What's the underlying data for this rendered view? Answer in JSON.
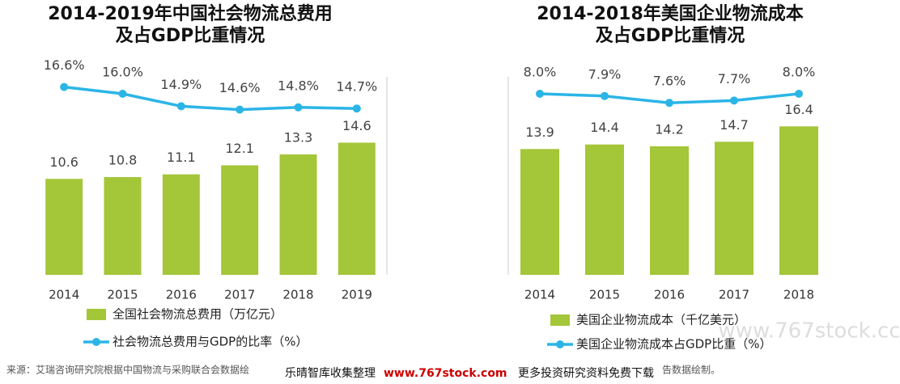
{
  "chart_data": [
    {
      "type": "bar_line",
      "title": [
        "2014-2019年中国社会物流总费用",
        "及占GDP比重情况"
      ],
      "categories": [
        "2014",
        "2015",
        "2016",
        "2017",
        "2018",
        "2019"
      ],
      "ylim": [
        0,
        25
      ],
      "y2lim": [
        0,
        20
      ],
      "series": [
        {
          "name": "全国社会物流总费用（万亿元）",
          "color": "#a4c639",
          "values": [
            10.6,
            10.8,
            11.1,
            12.1,
            13.3,
            14.6
          ]
        },
        {
          "name": "社会物流总费用与GDP的比率（%）",
          "color": "#2bb5e6",
          "axis": "y2",
          "values": [
            16.6,
            16.0,
            14.9,
            14.6,
            14.8,
            14.7
          ],
          "value_labels": [
            "16.6%",
            "16.0%",
            "14.9%",
            "14.6%",
            "14.8%",
            "14.7%"
          ]
        }
      ]
    },
    {
      "type": "bar_line",
      "title": [
        "2014-2018年美国企业物流成本",
        "及占GDP比重情况"
      ],
      "categories": [
        "2014",
        "2015",
        "2016",
        "2017",
        "2018"
      ],
      "ylim": [
        0,
        25
      ],
      "y2lim": [
        0,
        10
      ],
      "series": [
        {
          "name": "美国企业物流成本（千亿美元）",
          "color": "#a4c639",
          "values": [
            13.9,
            14.4,
            14.2,
            14.7,
            16.4
          ]
        },
        {
          "name": "美国企业物流成本占GDP比重（%）",
          "color": "#2bb5e6",
          "axis": "y2",
          "values": [
            8.0,
            7.9,
            7.6,
            7.7,
            8.0
          ],
          "value_labels": [
            "8.0%",
            "7.9%",
            "7.6%",
            "7.7%",
            "8.0%"
          ]
        }
      ]
    }
  ],
  "footer": {
    "source": "来源：艾瑞咨询研究院根据中国物流与采购联合会数据绘",
    "source_end": "告数据绘制。",
    "watermark_left": "乐晴智库收集整理",
    "watermark_url": "www.767stock.com",
    "watermark_right": "更多投资研究资料免费下载",
    "watermark_corner": "www.767stock.cc"
  }
}
